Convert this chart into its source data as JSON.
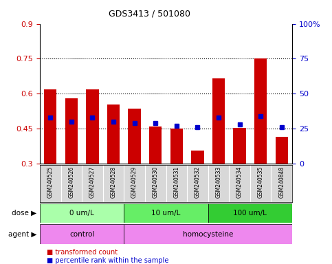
{
  "title": "GDS3413 / 501080",
  "samples": [
    "GSM240525",
    "GSM240526",
    "GSM240527",
    "GSM240528",
    "GSM240529",
    "GSM240530",
    "GSM240531",
    "GSM240532",
    "GSM240533",
    "GSM240534",
    "GSM240535",
    "GSM240848"
  ],
  "red_values": [
    0.62,
    0.58,
    0.62,
    0.555,
    0.535,
    0.46,
    0.45,
    0.355,
    0.665,
    0.455,
    0.75,
    0.415
  ],
  "blue_pct": [
    33,
    30,
    33,
    30,
    29,
    29,
    27,
    26,
    33,
    28,
    34,
    26
  ],
  "ylim": [
    0.3,
    0.9
  ],
  "y2lim": [
    0,
    100
  ],
  "yticks": [
    0.3,
    0.45,
    0.6,
    0.75,
    0.9
  ],
  "y2ticks": [
    0,
    25,
    50,
    75,
    100
  ],
  "bar_color": "#cc0000",
  "dot_color": "#0000cc",
  "bar_bottom": 0.3,
  "dose_groups": [
    {
      "label": "0 um/L",
      "start": 0,
      "end": 4,
      "color": "#aaffaa"
    },
    {
      "label": "10 um/L",
      "start": 4,
      "end": 8,
      "color": "#66ee66"
    },
    {
      "label": "100 um/L",
      "start": 8,
      "end": 12,
      "color": "#33cc33"
    }
  ],
  "agent_groups": [
    {
      "label": "control",
      "start": 0,
      "end": 4,
      "color": "#ee88ee"
    },
    {
      "label": "homocysteine",
      "start": 4,
      "end": 12,
      "color": "#ee88ee"
    }
  ],
  "dose_label": "dose",
  "agent_label": "agent",
  "legend_red": "transformed count",
  "legend_blue": "percentile rank within the sample",
  "tick_color_left": "#cc0000",
  "tick_color_right": "#0000cc",
  "sample_bg": "#d8d8d8",
  "grid_yticks": [
    0.45,
    0.6,
    0.75
  ]
}
